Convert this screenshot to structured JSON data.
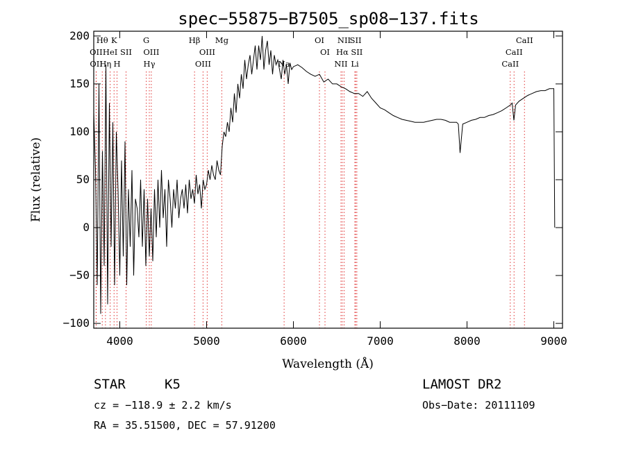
{
  "chart_data": {
    "type": "line",
    "title": "spec−55875−B7505_sp08−137.fits",
    "xlabel": "Wavelength (Å)",
    "ylabel": "Flux (relative)",
    "xlim": [
      3700,
      9100
    ],
    "ylim": [
      -105,
      205
    ],
    "x_ticks": [
      4000,
      5000,
      6000,
      7000,
      8000,
      9000
    ],
    "y_ticks": [
      -100,
      -50,
      0,
      50,
      100,
      150,
      200
    ],
    "x_tick_labels": [
      "4000",
      "5000",
      "6000",
      "7000",
      "8000",
      "9000"
    ],
    "y_tick_labels": [
      "−100",
      "−50",
      "0",
      "50",
      "100",
      "150",
      "200"
    ],
    "series": [
      {
        "color": "#000000",
        "x": [
          3700,
          3720,
          3740,
          3760,
          3780,
          3800,
          3820,
          3840,
          3860,
          3880,
          3900,
          3920,
          3940,
          3960,
          3980,
          4000,
          4020,
          4040,
          4060,
          4080,
          4100,
          4120,
          4140,
          4160,
          4180,
          4200,
          4220,
          4240,
          4260,
          4280,
          4300,
          4320,
          4340,
          4360,
          4380,
          4400,
          4420,
          4440,
          4460,
          4480,
          4500,
          4520,
          4540,
          4560,
          4580,
          4600,
          4620,
          4640,
          4660,
          4680,
          4700,
          4720,
          4740,
          4760,
          4780,
          4800,
          4820,
          4840,
          4860,
          4880,
          4900,
          4920,
          4940,
          4960,
          4980,
          5000,
          5020,
          5040,
          5060,
          5080,
          5100,
          5120,
          5140,
          5160,
          5180,
          5200,
          5220,
          5240,
          5260,
          5280,
          5300,
          5320,
          5340,
          5360,
          5380,
          5400,
          5420,
          5440,
          5460,
          5480,
          5500,
          5520,
          5540,
          5560,
          5580,
          5600,
          5620,
          5640,
          5660,
          5680,
          5700,
          5720,
          5740,
          5760,
          5780,
          5800,
          5820,
          5840,
          5860,
          5880,
          5900,
          5920,
          5940,
          5960,
          5980,
          6000,
          6050,
          6100,
          6150,
          6200,
          6250,
          6300,
          6350,
          6400,
          6450,
          6500,
          6550,
          6600,
          6650,
          6700,
          6750,
          6800,
          6850,
          6900,
          6950,
          7000,
          7050,
          7100,
          7150,
          7200,
          7250,
          7300,
          7350,
          7400,
          7450,
          7500,
          7550,
          7600,
          7650,
          7700,
          7750,
          7800,
          7850,
          7880,
          7900,
          7920,
          7950,
          8000,
          8050,
          8100,
          8150,
          8200,
          8250,
          8300,
          8350,
          8400,
          8450,
          8500,
          8520,
          8540,
          8560,
          8600,
          8650,
          8700,
          8750,
          8800,
          8850,
          8900,
          8950,
          9000,
          9010
        ],
        "y": [
          120,
          60,
          -60,
          150,
          -90,
          80,
          -40,
          170,
          -80,
          130,
          -20,
          110,
          -60,
          100,
          40,
          -50,
          70,
          -30,
          90,
          -60,
          40,
          -20,
          60,
          -50,
          30,
          20,
          -10,
          50,
          -20,
          40,
          -40,
          30,
          -30,
          20,
          -35,
          40,
          -10,
          50,
          0,
          60,
          10,
          40,
          -20,
          50,
          30,
          0,
          40,
          20,
          50,
          10,
          30,
          40,
          20,
          45,
          15,
          50,
          30,
          40,
          25,
          55,
          35,
          45,
          20,
          50,
          40,
          45,
          60,
          50,
          65,
          55,
          50,
          70,
          60,
          55,
          85,
          100,
          95,
          110,
          100,
          125,
          110,
          140,
          120,
          150,
          135,
          160,
          145,
          175,
          155,
          170,
          180,
          160,
          175,
          190,
          165,
          190,
          175,
          200,
          165,
          185,
          195,
          170,
          185,
          160,
          180,
          170,
          175,
          165,
          155,
          175,
          160,
          170,
          150,
          172,
          165,
          168,
          170,
          167,
          163,
          160,
          158,
          160,
          152,
          155,
          150,
          150,
          147,
          145,
          142,
          140,
          140,
          137,
          142,
          135,
          130,
          125,
          123,
          120,
          117,
          115,
          113,
          112,
          111,
          110,
          110,
          110,
          111,
          112,
          113,
          113,
          112,
          110,
          110,
          110,
          108,
          78,
          108,
          110,
          112,
          113,
          115,
          115,
          117,
          118,
          120,
          122,
          125,
          128,
          130,
          112,
          128,
          132,
          135,
          138,
          140,
          142,
          143,
          143,
          145,
          145,
          0
        ]
      }
    ],
    "lines": [
      {
        "label": "Hθ",
        "x": 3798,
        "row": 0,
        "color": "#000000"
      },
      {
        "label": "K",
        "x": 3934,
        "row": 0,
        "color": "#000000"
      },
      {
        "label": "G",
        "x": 4305,
        "row": 0,
        "color": "#000000"
      },
      {
        "label": "Hβ",
        "x": 4861,
        "row": 0,
        "color": "#000000"
      },
      {
        "label": "Mg",
        "x": 5175,
        "row": 0,
        "color": "#000000"
      },
      {
        "label": "OI",
        "x": 6300,
        "row": 0,
        "color": "#000000"
      },
      {
        "label": "NII",
        "x": 6584,
        "row": 0,
        "color": "#000000"
      },
      {
        "label": "SII",
        "x": 6717,
        "row": 0,
        "color": "#000000"
      },
      {
        "label": "CaII",
        "x": 8662,
        "row": 0,
        "color": "#000000"
      },
      {
        "label": "OII",
        "x": 3727,
        "row": 1,
        "color": "#000000"
      },
      {
        "label": "HeI",
        "x": 3889,
        "row": 1,
        "color": "#000000"
      },
      {
        "label": "SII",
        "x": 4072,
        "row": 1,
        "color": "#000000"
      },
      {
        "label": "OIII",
        "x": 4363,
        "row": 1,
        "color": "#000000"
      },
      {
        "label": "OIII",
        "x": 5007,
        "row": 1,
        "color": "#000000"
      },
      {
        "label": "OI",
        "x": 6364,
        "row": 1,
        "color": "#000000"
      },
      {
        "label": "Hα",
        "x": 6563,
        "row": 1,
        "color": "#000000"
      },
      {
        "label": "SII",
        "x": 6731,
        "row": 1,
        "color": "#000000"
      },
      {
        "label": "CaII",
        "x": 8542,
        "row": 1,
        "color": "#000000"
      },
      {
        "label": "OII",
        "x": 3729,
        "row": 2,
        "color": "#000000"
      },
      {
        "label": "Hη",
        "x": 3835,
        "row": 2,
        "color": "#000000"
      },
      {
        "label": "H",
        "x": 3968,
        "row": 2,
        "color": "#000000"
      },
      {
        "label": "Hγ",
        "x": 4340,
        "row": 2,
        "color": "#000000"
      },
      {
        "label": "OIII",
        "x": 4959,
        "row": 2,
        "color": "#000000"
      },
      {
        "label": "Na",
        "x": 5893,
        "row": 2,
        "color": "#000000"
      },
      {
        "label": "NII",
        "x": 6548,
        "row": 2,
        "color": "#000000"
      },
      {
        "label": "Li",
        "x": 6708,
        "row": 2,
        "color": "#000000"
      },
      {
        "label": "CaII",
        "x": 8498,
        "row": 2,
        "color": "#000000"
      }
    ],
    "line_marker_color": "#e03030",
    "grid": false,
    "legend": "none"
  },
  "info": {
    "object_type": "STAR",
    "subclass": "K5",
    "survey": "LAMOST DR2",
    "redshift": "cz = −118.9 ± 2.2 km/s",
    "obs_date": "Obs−Date: 20111109",
    "coords": "RA =  35.51500, DEC =  57.91200"
  }
}
